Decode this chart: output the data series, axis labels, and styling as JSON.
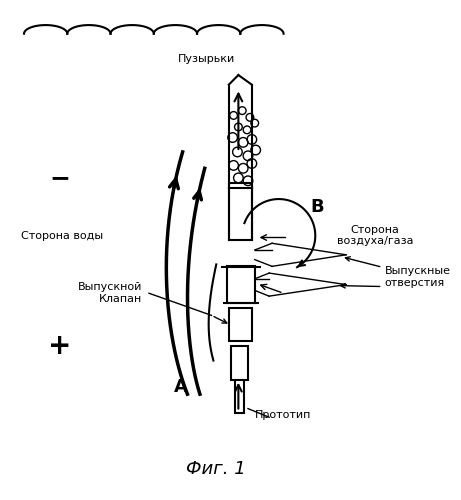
{
  "title": "Фиг. 1",
  "label_bubbles": "Пузырьки",
  "label_water_side": "Сторона воды",
  "label_air_side": "Сторона\nвоздуха/газа",
  "label_valve": "Выпускной\nКлапан",
  "label_outlets": "Выпускные\nотверстия",
  "label_prototype": "Прототип",
  "label_minus": "−",
  "label_plus": "+",
  "label_A": "A",
  "label_B": "B",
  "bg_color": "#ffffff",
  "line_color": "#000000"
}
